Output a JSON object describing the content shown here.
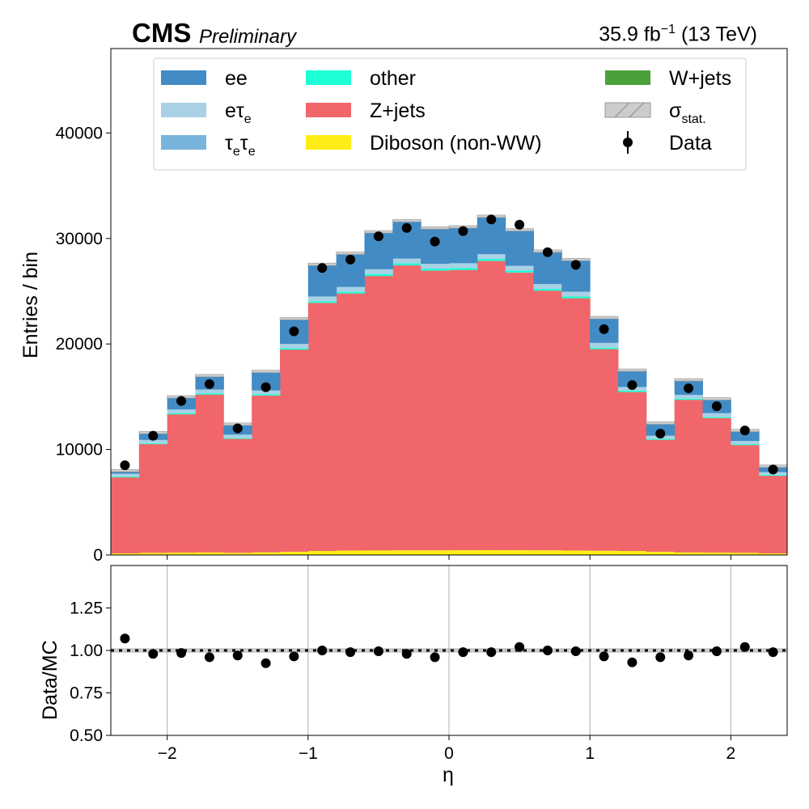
{
  "header": {
    "experiment": "CMS",
    "status": "Preliminary",
    "lumi_value": "35.9",
    "lumi_unit": "fb",
    "lumi_exp": "−1",
    "energy": "(13 TeV)"
  },
  "chart_data": [
    {
      "type": "bar",
      "subtype": "stacked-histogram",
      "ylabel": "Entries / bin",
      "xlim": [
        -2.4,
        2.4
      ],
      "ylim": [
        0,
        48000
      ],
      "yticks": [
        0,
        10000,
        20000,
        30000,
        40000
      ],
      "xticks": [
        -2,
        -1,
        0,
        1,
        2
      ],
      "bin_edges": [
        -2.4,
        -2.2,
        -2.0,
        -1.8,
        -1.6,
        -1.4,
        -1.2,
        -1.0,
        -0.8,
        -0.6,
        -0.4,
        -0.2,
        0.0,
        0.2,
        0.4,
        0.6,
        0.8,
        1.0,
        1.2,
        1.4,
        1.6,
        1.8,
        2.0,
        2.2,
        2.4
      ],
      "legend_position": "top",
      "series": [
        {
          "name": "Diboson (non-WW)",
          "color": "#ffee16",
          "values": [
            150,
            200,
            220,
            240,
            200,
            250,
            300,
            380,
            420,
            430,
            440,
            440,
            450,
            460,
            450,
            440,
            420,
            400,
            380,
            300,
            240,
            220,
            200,
            150
          ]
        },
        {
          "name": "Z+jets",
          "color": "#f0666a",
          "values": [
            7200,
            10300,
            13100,
            14950,
            10800,
            14850,
            19150,
            23500,
            24350,
            26000,
            27000,
            26500,
            26550,
            27400,
            26300,
            24600,
            23900,
            19100,
            15050,
            10600,
            14450,
            12750,
            10200,
            7350
          ]
        },
        {
          "name": "W+jets",
          "color": "#4aa13b",
          "values": [
            20,
            20,
            20,
            20,
            20,
            20,
            20,
            20,
            20,
            20,
            20,
            20,
            20,
            20,
            20,
            20,
            20,
            20,
            20,
            20,
            20,
            20,
            20,
            20
          ]
        },
        {
          "name": "other",
          "color": "#1dffd6",
          "values": [
            80,
            80,
            100,
            120,
            80,
            120,
            130,
            150,
            160,
            180,
            180,
            180,
            180,
            180,
            180,
            160,
            160,
            130,
            120,
            80,
            110,
            100,
            80,
            80
          ]
        },
        {
          "name": "τ_eτ_e",
          "color": "#78b4db",
          "values": [
            0,
            0,
            0,
            0,
            0,
            0,
            0,
            0,
            0,
            0,
            0,
            0,
            0,
            0,
            0,
            0,
            0,
            0,
            0,
            0,
            0,
            0,
            0,
            0
          ]
        },
        {
          "name": "eτ_e",
          "color": "#a8d1e6",
          "values": [
            250,
            300,
            350,
            350,
            300,
            350,
            400,
            450,
            450,
            450,
            450,
            450,
            450,
            450,
            450,
            450,
            450,
            450,
            350,
            300,
            350,
            350,
            300,
            250
          ]
        },
        {
          "name": "ee",
          "color": "#428bc4",
          "values": [
            300,
            700,
            1200,
            1320,
            1000,
            1810,
            2400,
            3050,
            3200,
            3550,
            3600,
            3410,
            3450,
            3590,
            3420,
            3130,
            3050,
            2400,
            1600,
            1200,
            1430,
            1360,
            1000,
            570
          ]
        }
      ],
      "data_points": {
        "name": "Data",
        "x": [
          -2.3,
          -2.1,
          -1.9,
          -1.7,
          -1.5,
          -1.3,
          -1.1,
          -0.9,
          -0.7,
          -0.5,
          -0.3,
          -0.1,
          0.1,
          0.3,
          0.5,
          0.7,
          0.9,
          1.1,
          1.3,
          1.5,
          1.7,
          1.9,
          2.1,
          2.3
        ],
        "values": [
          8500,
          11300,
          14600,
          16200,
          12000,
          15900,
          21200,
          27200,
          28000,
          30200,
          31000,
          29700,
          30700,
          31800,
          31300,
          28700,
          27500,
          21400,
          16100,
          11500,
          15800,
          14100,
          11800,
          8100
        ]
      },
      "uncertainty": {
        "name": "σ_stat.",
        "color": "#cccccc"
      }
    },
    {
      "type": "scatter",
      "ylabel": "Data/MC",
      "xlabel": "η",
      "xlim": [
        -2.4,
        2.4
      ],
      "ylim": [
        0.5,
        1.5
      ],
      "yticks": [
        0.5,
        0.75,
        1.0,
        1.25
      ],
      "ytick_labels": [
        "0.50",
        "0.75",
        "1.00",
        "1.25"
      ],
      "xticks": [
        -2,
        -1,
        0,
        1,
        2
      ],
      "xtick_labels": [
        "−2",
        "−1",
        "0",
        "1",
        "2"
      ],
      "grid": "vertical",
      "reference_line": 1.0,
      "x": [
        -2.3,
        -2.1,
        -1.9,
        -1.7,
        -1.5,
        -1.3,
        -1.1,
        -0.9,
        -0.7,
        -0.5,
        -0.3,
        -0.1,
        0.1,
        0.3,
        0.5,
        0.7,
        0.9,
        1.1,
        1.3,
        1.5,
        1.7,
        1.9,
        2.1,
        2.3
      ],
      "values": [
        1.07,
        0.98,
        0.985,
        0.96,
        0.97,
        0.925,
        0.965,
        1.0,
        0.99,
        0.995,
        0.98,
        0.96,
        0.99,
        0.99,
        1.02,
        1.0,
        0.995,
        0.965,
        0.93,
        0.96,
        0.97,
        0.995,
        1.02,
        0.99
      ]
    }
  ],
  "legend": {
    "col1": [
      {
        "key": "ee",
        "label": "ee",
        "color": "#428bc4"
      },
      {
        "key": "etau",
        "label": "eτ",
        "sub": "e",
        "color": "#a8d1e6"
      },
      {
        "key": "tautau",
        "label": "τ",
        "sub": "e",
        "label2": "τ",
        "sub2": "e",
        "color": "#78b4db"
      }
    ],
    "col2": [
      {
        "key": "other",
        "label": "other",
        "color": "#1dffd6"
      },
      {
        "key": "zjets",
        "label": "Z+jets",
        "color": "#f0666a"
      },
      {
        "key": "diboson",
        "label": "Diboson (non-WW)",
        "color": "#ffee16"
      }
    ],
    "col3": [
      {
        "key": "wjets",
        "label": "W+jets",
        "color": "#4aa13b"
      },
      {
        "key": "stat",
        "label": "σ",
        "sub": "stat.",
        "color": "#cccccc"
      },
      {
        "key": "data",
        "label": "Data",
        "color": "#000000"
      }
    ]
  }
}
